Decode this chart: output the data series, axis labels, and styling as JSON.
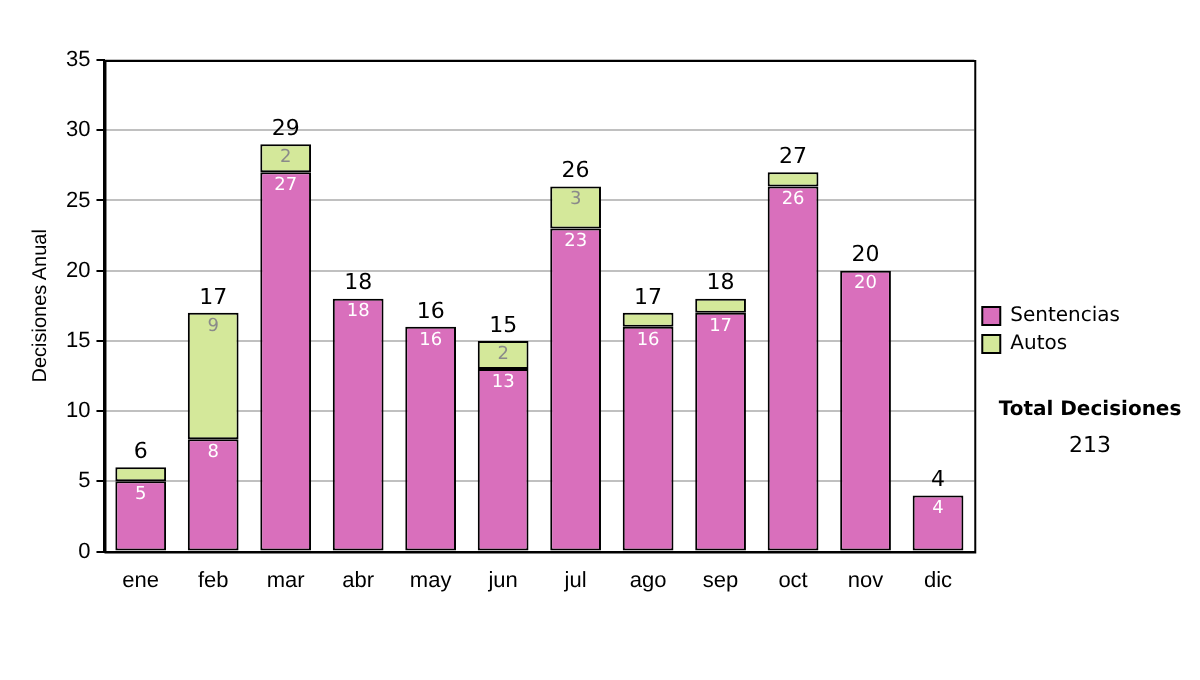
{
  "chart_data": {
    "type": "bar",
    "stacked": true,
    "ylabel": "Decisiones Anual",
    "categories": [
      "ene",
      "feb",
      "mar",
      "abr",
      "may",
      "jun",
      "jul",
      "ago",
      "sep",
      "oct",
      "nov",
      "dic"
    ],
    "series": [
      {
        "name": "Sentencias",
        "color": "#d96fbc",
        "values": [
          5,
          8,
          27,
          18,
          16,
          13,
          23,
          16,
          17,
          26,
          20,
          4
        ],
        "value_labels": [
          "5",
          "8",
          "27",
          "18",
          "16",
          "13",
          "23",
          "16",
          "17",
          "26",
          "20",
          "4"
        ]
      },
      {
        "name": "Autos",
        "color": "#d4e89a",
        "values": [
          1,
          9,
          2,
          0,
          0,
          2,
          3,
          1,
          1,
          1,
          0,
          0
        ],
        "value_labels": [
          null,
          "9",
          "2",
          null,
          null,
          "2",
          "3",
          null,
          null,
          null,
          null,
          null
        ]
      }
    ],
    "totals": [
      "6",
      "17",
      "29",
      "18",
      "16",
      "15",
      "26",
      "17",
      "18",
      "27",
      "20",
      "4"
    ],
    "ylim": [
      0,
      35
    ],
    "yticks": [
      0,
      5,
      10,
      15,
      20,
      25,
      30,
      35
    ],
    "grid": "y",
    "legend": "right",
    "annotations": [
      "Total Decisiones",
      "213"
    ]
  }
}
